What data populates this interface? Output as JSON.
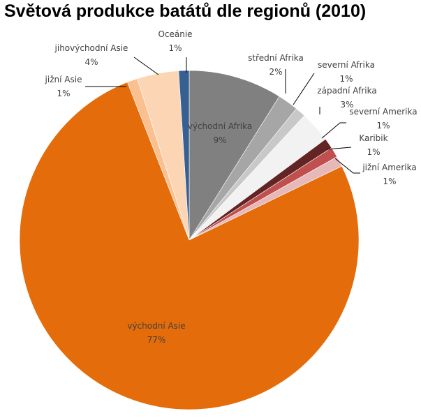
{
  "chart_data": {
    "type": "pie",
    "title": "Světová produkce batátů dle regionů (2010)",
    "slices": [
      {
        "name": "východní Afrika",
        "value": 9,
        "label": "9%",
        "color": "#808080"
      },
      {
        "name": "střední Afrika",
        "value": 2,
        "label": "2%",
        "color": "#a6a6a6"
      },
      {
        "name": "severní Afrika",
        "value": 1,
        "label": "1%",
        "color": "#c8c8c8"
      },
      {
        "name": "západní Afrika",
        "value": 3,
        "label": "3%",
        "color": "#f2f2f2"
      },
      {
        "name": "severní Amerika",
        "value": 1,
        "label": "1%",
        "color": "#632523"
      },
      {
        "name": "Karibik",
        "value": 1,
        "label": "1%",
        "color": "#c0504d"
      },
      {
        "name": "jižní Amerika",
        "value": 1,
        "label": "1%",
        "color": "#e6b9b8"
      },
      {
        "name": "východní Asie",
        "value": 77,
        "label": "77%",
        "color": "#e46c0a"
      },
      {
        "name": "jižní Asie",
        "value": 1,
        "label": "1%",
        "color": "#fac090"
      },
      {
        "name": "jihovýchodní Asie",
        "value": 4,
        "label": "4%",
        "color": "#fcd5b5"
      },
      {
        "name": "Oceánie",
        "value": 1,
        "label": "1%",
        "color": "#376092"
      }
    ],
    "legend": "none"
  }
}
